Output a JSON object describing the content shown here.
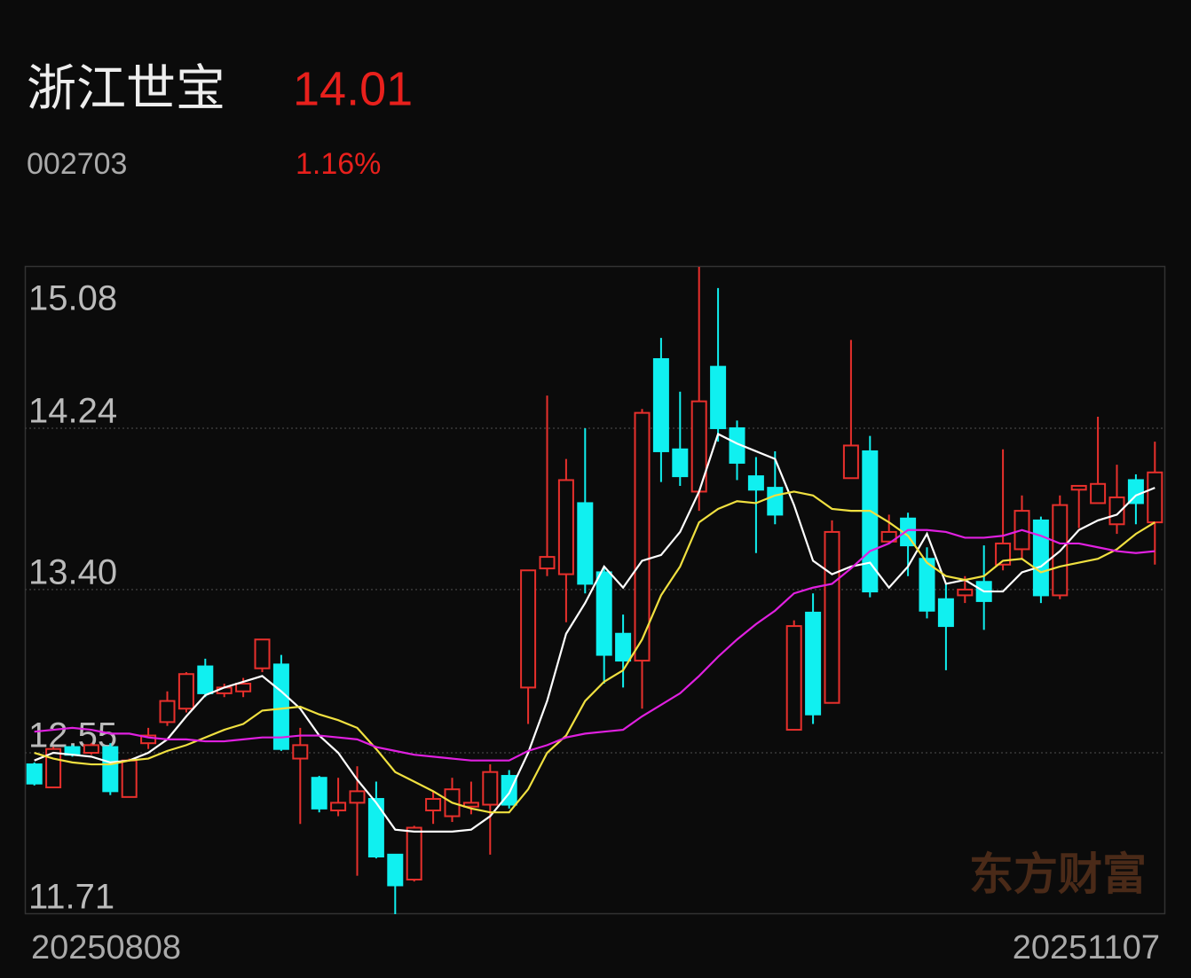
{
  "chart_data": {
    "type": "candlestick",
    "title": "浙江世宝",
    "price": 14.01,
    "code": "002703",
    "change": "1.16%",
    "watermark": "东方财富",
    "categories": [
      "20250808",
      null,
      null,
      null,
      null,
      null,
      null,
      null,
      null,
      null,
      null,
      null,
      null,
      null,
      null,
      null,
      null,
      null,
      null,
      null,
      null,
      null,
      null,
      null,
      null,
      null,
      null,
      null,
      null,
      null,
      null,
      null,
      null,
      null,
      null,
      null,
      null,
      null,
      null,
      null,
      null,
      null,
      null,
      null,
      null,
      null,
      null,
      null,
      null,
      null,
      null,
      null,
      null,
      null,
      null,
      null,
      null,
      null,
      null,
      "20251107"
    ],
    "open": [
      12.49,
      12.37,
      12.58,
      12.55,
      12.58,
      12.32,
      12.6,
      12.71,
      12.78,
      13.0,
      12.86,
      12.87,
      12.99,
      13.01,
      12.52,
      12.42,
      12.25,
      12.29,
      12.31,
      12.02,
      11.89,
      12.25,
      12.22,
      12.27,
      12.28,
      12.43,
      12.89,
      13.51,
      13.48,
      13.85,
      13.49,
      13.17,
      13.03,
      14.6,
      14.13,
      13.91,
      14.56,
      14.24,
      13.99,
      13.93,
      12.67,
      13.28,
      12.81,
      13.98,
      14.12,
      13.65,
      13.77,
      13.56,
      13.35,
      13.37,
      13.44,
      13.53,
      13.61,
      13.76,
      13.37,
      13.92,
      13.85,
      13.74,
      13.97,
      13.75
    ],
    "high": [
      12.5,
      12.58,
      12.59,
      12.6,
      12.6,
      12.52,
      12.68,
      12.87,
      12.97,
      13.04,
      12.91,
      12.94,
      13.14,
      13.06,
      12.68,
      12.43,
      12.42,
      12.48,
      12.4,
      12.02,
      12.17,
      12.35,
      12.42,
      12.4,
      12.49,
      12.46,
      13.5,
      14.41,
      14.08,
      14.24,
      13.52,
      13.27,
      14.34,
      14.71,
      14.43,
      15.08,
      14.97,
      14.28,
      14.09,
      14.12,
      13.24,
      13.38,
      13.76,
      14.7,
      14.2,
      13.79,
      13.8,
      13.62,
      13.43,
      13.47,
      13.63,
      14.13,
      13.89,
      13.78,
      13.89,
      13.94,
      14.3,
      14.05,
      14.0,
      14.17
    ],
    "low": [
      12.38,
      12.37,
      12.53,
      12.54,
      12.33,
      12.32,
      12.57,
      12.69,
      12.76,
      12.84,
      12.84,
      12.84,
      12.97,
      12.56,
      12.18,
      12.24,
      12.22,
      11.91,
      12.0,
      11.71,
      11.88,
      12.18,
      12.19,
      12.23,
      12.02,
      12.26,
      12.7,
      13.47,
      13.23,
      13.38,
      12.91,
      12.89,
      12.78,
      13.96,
      13.94,
      13.81,
      14.17,
      13.97,
      13.59,
      13.74,
      12.67,
      12.7,
      12.81,
      13.98,
      13.36,
      13.64,
      13.47,
      13.25,
      12.98,
      13.33,
      13.19,
      13.5,
      13.56,
      13.33,
      13.35,
      13.72,
      13.85,
      13.69,
      13.74,
      13.53
    ],
    "close": [
      12.39,
      12.57,
      12.54,
      12.59,
      12.35,
      12.51,
      12.64,
      12.82,
      12.96,
      12.86,
      12.89,
      12.91,
      13.14,
      12.57,
      12.59,
      12.26,
      12.29,
      12.35,
      12.01,
      11.86,
      12.16,
      12.31,
      12.36,
      12.29,
      12.45,
      12.28,
      13.5,
      13.57,
      13.97,
      13.43,
      13.06,
      13.03,
      14.32,
      14.12,
      13.99,
      14.38,
      14.24,
      14.06,
      13.92,
      13.79,
      13.21,
      12.75,
      13.7,
      14.15,
      13.39,
      13.7,
      13.63,
      13.29,
      13.21,
      13.4,
      13.34,
      13.64,
      13.81,
      13.37,
      13.84,
      13.94,
      13.95,
      13.88,
      13.85,
      14.01
    ],
    "up_color": "#e8302c",
    "down_color": "#10f0f0",
    "series": [
      {
        "color": "#ffffff",
        "values": [
          12.51,
          12.55,
          12.54,
          12.53,
          12.5,
          12.51,
          12.55,
          12.62,
          12.74,
          12.85,
          12.89,
          12.92,
          12.95,
          12.87,
          12.78,
          12.64,
          12.55,
          12.41,
          12.29,
          12.15,
          12.14,
          12.14,
          12.14,
          12.15,
          12.22,
          12.34,
          12.55,
          12.82,
          13.17,
          13.33,
          13.52,
          13.41,
          13.55,
          13.58,
          13.7,
          13.91,
          14.21,
          14.16,
          14.12,
          14.08,
          13.84,
          13.55,
          13.48,
          13.52,
          13.54,
          13.41,
          13.52,
          13.69,
          13.43,
          13.45,
          13.39,
          13.39,
          13.49,
          13.52,
          13.6,
          13.71,
          13.76,
          13.79,
          13.89,
          13.93
        ]
      },
      {
        "color": "#f0e040",
        "values": [
          12.55,
          12.52,
          12.5,
          12.49,
          12.49,
          12.51,
          12.52,
          12.56,
          12.59,
          12.63,
          12.67,
          12.7,
          12.77,
          12.78,
          12.79,
          12.75,
          12.72,
          12.68,
          12.57,
          12.45,
          12.4,
          12.35,
          12.29,
          12.26,
          12.24,
          12.24,
          12.36,
          12.55,
          12.64,
          12.82,
          12.92,
          12.98,
          13.14,
          13.37,
          13.52,
          13.75,
          13.82,
          13.86,
          13.85,
          13.89,
          13.91,
          13.89,
          13.82,
          13.81,
          13.81,
          13.75,
          13.68,
          13.54,
          13.47,
          13.45,
          13.47,
          13.55,
          13.56,
          13.49,
          13.52,
          13.54,
          13.56,
          13.61,
          13.69,
          13.75
        ]
      },
      {
        "color": "#e020e0",
        "values": [
          12.66,
          12.67,
          12.68,
          12.67,
          12.65,
          12.65,
          12.63,
          12.62,
          12.62,
          12.61,
          12.61,
          12.62,
          12.63,
          12.63,
          12.64,
          12.64,
          12.63,
          12.62,
          12.58,
          12.56,
          12.54,
          12.53,
          12.52,
          12.51,
          12.51,
          12.51,
          12.56,
          12.59,
          12.63,
          12.65,
          12.66,
          12.67,
          12.74,
          12.8,
          12.86,
          12.95,
          13.05,
          13.14,
          13.22,
          13.29,
          13.38,
          13.41,
          13.43,
          13.51,
          13.6,
          13.64,
          13.71,
          13.71,
          13.7,
          13.67,
          13.67,
          13.68,
          13.71,
          13.68,
          13.64,
          13.64,
          13.62,
          13.6,
          13.59,
          13.6
        ]
      }
    ],
    "ylim": [
      11.71,
      15.08
    ],
    "yticks": [
      11.71,
      12.55,
      {
        "value": 13.4,
        "label": "13.40"
      },
      14.24,
      15.08
    ],
    "grid": true
  }
}
